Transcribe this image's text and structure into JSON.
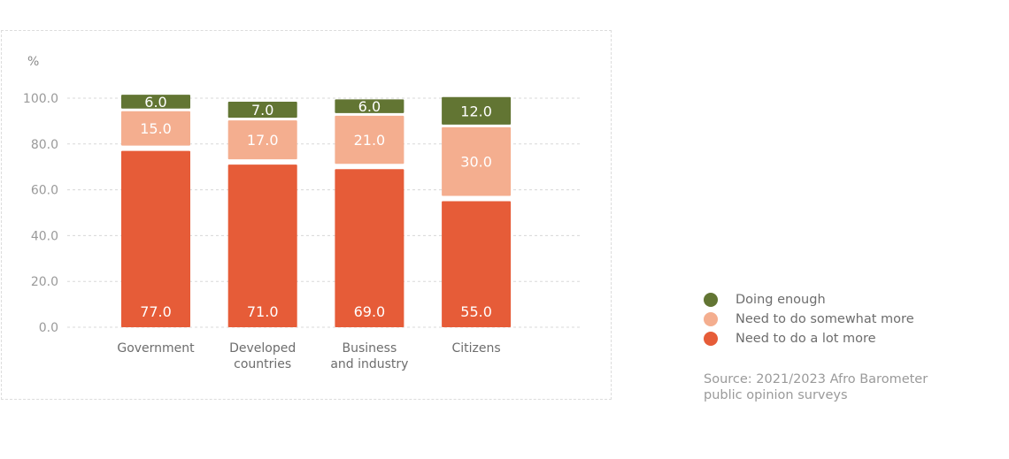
{
  "chart_data": {
    "type": "bar",
    "stacked": true,
    "ylabel": "%",
    "ylim": [
      0,
      100
    ],
    "yticks": [
      "0.0",
      "20.0",
      "40.0",
      "60.0",
      "80.0",
      "100.0"
    ],
    "grid": true,
    "legend_position": "right",
    "categories": [
      [
        "Government"
      ],
      [
        "Developed",
        "countries"
      ],
      [
        "Business",
        "and industry"
      ],
      [
        "Citizens"
      ]
    ],
    "series": [
      {
        "name": "Need to do a lot more",
        "color": "#e65c38",
        "values": [
          77.0,
          71.0,
          69.0,
          55.0
        ]
      },
      {
        "name": "Need to do somewhat more",
        "color": "#f4ae8f",
        "values": [
          15.0,
          17.0,
          21.0,
          30.0
        ]
      },
      {
        "name": "Doing enough",
        "color": "#627533",
        "values": [
          6.0,
          7.0,
          6.0,
          12.0
        ]
      }
    ]
  },
  "legend": [
    {
      "label": "Doing enough",
      "color": "#627533"
    },
    {
      "label": "Need to do somewhat more",
      "color": "#f4ae8f"
    },
    {
      "label": "Need to do a lot more",
      "color": "#e65c38"
    }
  ],
  "source": "Source: 2021/2023 Afro Barometer public opinion surveys"
}
